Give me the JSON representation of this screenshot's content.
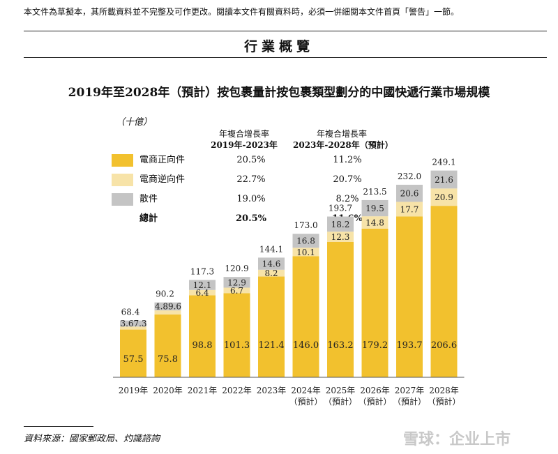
{
  "disclaimer": "本文件為草擬本，其所載資料並不完整及可作更改。閱讀本文件有關資料時，必須一併細閱本文件首頁「警告」一節。",
  "section_title": "行業概覽",
  "source": "資料來源：國家郵政局、灼識諮詢",
  "watermark": "雪球：企业上市",
  "colors": {
    "forward": "#F2C12E",
    "reverse": "#F7E3A8",
    "loose": "#C4C4C4"
  },
  "legend": {
    "cagr1_line1": "年複合增長率",
    "cagr1_line2": "2019年-2023年",
    "cagr2_line1": "年複合增長率",
    "cagr2_line2": "2023年-2028年（預計）",
    "rows": [
      {
        "name": "電商正向件",
        "cagr1": "20.5%",
        "cagr2": "11.2%"
      },
      {
        "name": "電商逆向件",
        "cagr1": "22.7%",
        "cagr2": "20.7%"
      },
      {
        "name": "散件",
        "cagr1": "19.0%",
        "cagr2": "8.2%"
      },
      {
        "name": "總計",
        "cagr1": "20.5%",
        "cagr2": "11.6%"
      }
    ]
  },
  "chart_data": {
    "type": "bar",
    "stacked": true,
    "title": "2019年至2028年（預計）按包裹量計按包裹類型劃分的中國快遞行業市場規模",
    "unit": "（十億）",
    "categories": [
      "2019年",
      "2020年",
      "2021年",
      "2022年",
      "2023年",
      "2024年",
      "2025年",
      "2026年",
      "2027年",
      "2028年"
    ],
    "category_sub": [
      "",
      "",
      "",
      "",
      "",
      "（預計）",
      "（預計）",
      "（預計）",
      "（預計）",
      "（預計）"
    ],
    "series": [
      {
        "name": "電商正向件",
        "values": [
          57.5,
          75.8,
          98.8,
          101.3,
          121.4,
          146.0,
          163.2,
          179.2,
          193.7,
          206.6
        ]
      },
      {
        "name": "電商逆向件",
        "values": [
          3.6,
          4.8,
          6.4,
          6.7,
          8.2,
          10.1,
          12.3,
          14.8,
          17.7,
          20.9
        ]
      },
      {
        "name": "散件",
        "values": [
          7.3,
          9.6,
          12.1,
          12.9,
          14.6,
          16.8,
          18.2,
          19.5,
          20.6,
          21.6
        ]
      }
    ],
    "totals": [
      68.4,
      90.2,
      117.3,
      120.9,
      144.1,
      173.0,
      193.7,
      213.5,
      232.0,
      249.1
    ],
    "grid": false
  }
}
